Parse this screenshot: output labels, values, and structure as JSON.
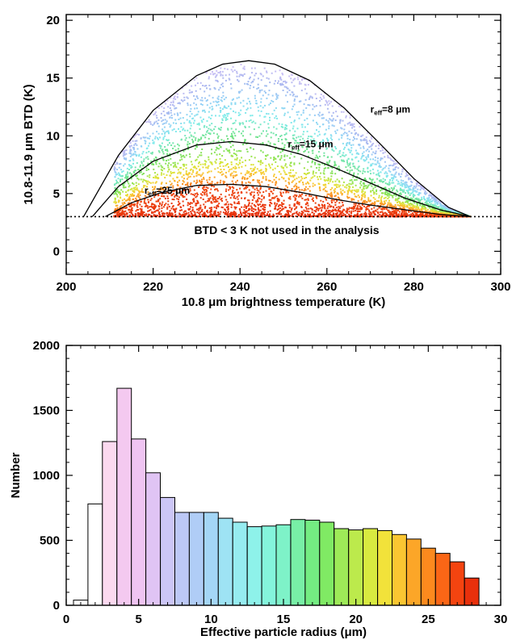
{
  "chart_data": [
    {
      "type": "scatter",
      "xlabel": "10.8 μm brightness temperature (K)",
      "ylabel": "10.8-11.9 μm BTD (K)",
      "xlim": [
        200,
        300
      ],
      "ylim": [
        -2,
        20.5
      ],
      "xticks": [
        200,
        220,
        240,
        260,
        280,
        300
      ],
      "yticks": [
        0,
        5,
        10,
        15,
        20
      ],
      "threshold": {
        "y": 3,
        "label": "BTD < 3 K not used in the analysis"
      },
      "curves": [
        {
          "label_main": "r",
          "label_sub": "eff",
          "label_rest": "=8 μm",
          "reff": 8,
          "x": [
            204,
            212,
            220,
            230,
            236,
            242,
            248,
            256,
            264,
            272,
            280,
            288,
            293
          ],
          "y": [
            3,
            8.3,
            12.2,
            15.2,
            16.2,
            16.5,
            16.2,
            14.8,
            12.4,
            9.4,
            6.3,
            3.8,
            3
          ]
        },
        {
          "label_main": "r",
          "label_sub": "eff",
          "label_rest": "=15 μm",
          "reff": 15,
          "x": [
            206,
            212,
            220,
            230,
            238,
            246,
            254,
            262,
            270,
            278,
            286,
            293
          ],
          "y": [
            3,
            5.6,
            7.8,
            9.2,
            9.5,
            9.2,
            8.4,
            7.2,
            5.9,
            4.6,
            3.6,
            3
          ]
        },
        {
          "label_main": "r",
          "label_sub": "eff",
          "label_rest": "=25 μm",
          "reff": 25,
          "x": [
            209,
            215,
            222,
            230,
            238,
            246,
            254,
            262,
            270,
            278,
            286,
            293
          ],
          "y": [
            3,
            4.2,
            5.1,
            5.7,
            5.8,
            5.6,
            5.1,
            4.5,
            4.0,
            3.6,
            3.2,
            3
          ]
        }
      ],
      "point_colors": {
        "reff_8": "#aab8f0",
        "reff_15": "#6fe070",
        "reff_25": "#f04a10"
      },
      "grid": false
    },
    {
      "type": "bar",
      "xlabel": "Effective particle radius (μm)",
      "ylabel": "Number",
      "xlim": [
        0,
        30
      ],
      "ylim": [
        0,
        2000
      ],
      "xticks": [
        0,
        5,
        10,
        15,
        20,
        25,
        30
      ],
      "yticks": [
        0,
        500,
        1000,
        1500,
        2000
      ],
      "bin_width": 1,
      "bin_starts": [
        0.5,
        1.5,
        2.5,
        3.5,
        4.5,
        5.5,
        6.5,
        7.5,
        8.5,
        9.5,
        10.5,
        11.5,
        12.5,
        13.5,
        14.5,
        15.5,
        16.5,
        17.5,
        18.5,
        19.5,
        20.5,
        21.5,
        22.5,
        23.5,
        24.5,
        25.5,
        26.5,
        27.5
      ],
      "values": [
        40,
        780,
        1260,
        1670,
        1280,
        1020,
        830,
        715,
        715,
        715,
        670,
        640,
        605,
        610,
        620,
        660,
        655,
        640,
        590,
        580,
        590,
        575,
        545,
        510,
        440,
        400,
        335,
        210
      ],
      "colors": [
        "#ffffff",
        "#ffffff",
        "#fbd9ef",
        "#f4c9f0",
        "#efc4f2",
        "#e0c4f4",
        "#ccc6f6",
        "#bcc8f6",
        "#b0cdf6",
        "#a4d6f6",
        "#9ee3f4",
        "#96ecf0",
        "#8ef2ea",
        "#84f4dc",
        "#7ef2c8",
        "#78efa6",
        "#74ec82",
        "#80ea64",
        "#9eea58",
        "#bcea4c",
        "#d8ea40",
        "#f2e23a",
        "#fac632",
        "#fca628",
        "#fc8a1e",
        "#fa6616",
        "#f44410",
        "#e8300c"
      ],
      "grid": false
    }
  ]
}
